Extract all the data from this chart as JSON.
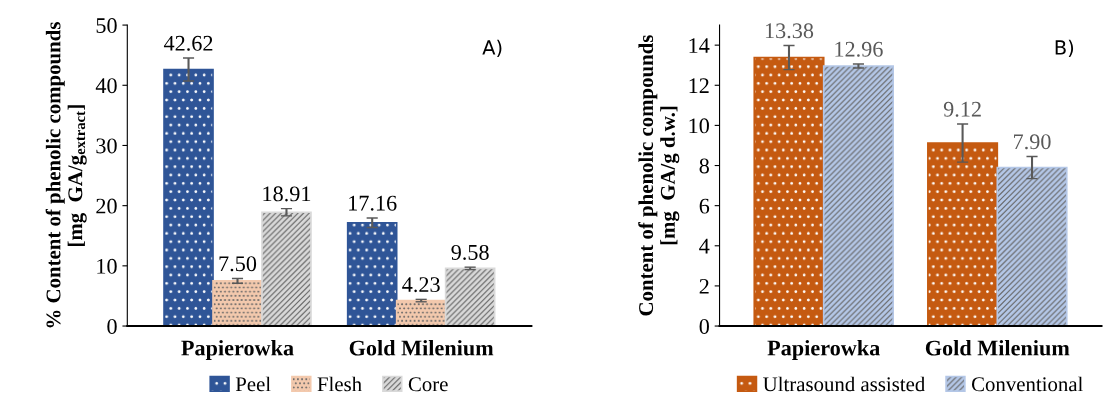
{
  "chart_data": [
    {
      "type": "bar",
      "ylabel": "% Content of phenolic compounds\n[mg  GA/g$_{extract}$]",
      "categories": [
        "Papierowka",
        "Gold Milenium"
      ],
      "series": [
        {
          "name": "Peel",
          "color": "#2f5597",
          "values": [
            42.62,
            17.16
          ],
          "errors": [
            1.9,
            0.8
          ],
          "value_labels": [
            "42.62",
            "17.16"
          ]
        },
        {
          "name": "Flesh",
          "color": "#f3c9ad",
          "values": [
            7.5,
            4.23
          ],
          "errors": [
            0.4,
            0.2
          ],
          "value_labels": [
            "7.50",
            "4.23"
          ]
        },
        {
          "name": "Core",
          "color": "#d9d9d9",
          "values": [
            18.91,
            9.58
          ],
          "errors": [
            0.6,
            0.2
          ],
          "value_labels": [
            "18.91",
            "9.58"
          ]
        }
      ],
      "ylim": [
        0,
        50
      ],
      "yticks": [
        0,
        10,
        20,
        30,
        40,
        50
      ],
      "data_labels": true,
      "legend": "bottom",
      "grid": false,
      "annotations": [
        "A)"
      ]
    },
    {
      "type": "bar",
      "ylabel": "Content of phenolic compounds\n[mg  GA/g d.w.]",
      "categories": [
        "Papierowka",
        "Gold Milenium"
      ],
      "series": [
        {
          "name": "Ultrasound assisted",
          "color": "#c55a11",
          "values": [
            13.38,
            9.12
          ],
          "errors": [
            0.6,
            0.95
          ],
          "value_labels": [
            "13.38",
            "9.12"
          ]
        },
        {
          "name": "Conventional",
          "color": "#b4c7e7",
          "values": [
            12.96,
            7.9
          ],
          "errors": [
            0.1,
            0.55
          ],
          "value_labels": [
            "12.96",
            "7.90"
          ]
        }
      ],
      "ylim": [
        0,
        15
      ],
      "yticks": [
        0,
        2,
        4,
        6,
        8,
        10,
        12,
        14
      ],
      "data_labels": true,
      "legend": "bottom",
      "grid": false,
      "annotations": [
        "B)"
      ]
    }
  ]
}
